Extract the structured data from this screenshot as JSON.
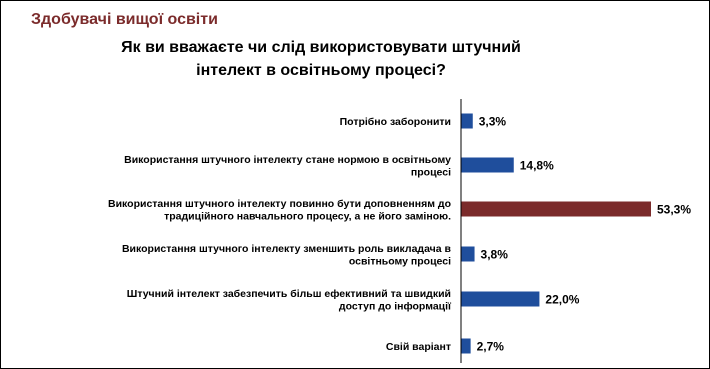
{
  "header": {
    "title": "Здобувачі вищої освіти",
    "title_color": "#7b2b2b"
  },
  "chart_data": {
    "type": "bar",
    "orientation": "horizontal",
    "title": "Як ви вважаєте чи слід використовувати штучний інтелект в освітньому процесі?",
    "xlabel": "",
    "ylabel": "",
    "value_suffix": "%",
    "xlim": [
      0,
      53.3
    ],
    "grid": false,
    "legend": "none",
    "categories": [
      [
        "Потрібно заборонити"
      ],
      [
        "Використання штучного інтелекту стане нормою в освітньому",
        "процесі"
      ],
      [
        "Використання штучного інтелекту повинно бути доповненням до",
        "традиційного навчального процесу, а не його заміною."
      ],
      [
        "Використання штучного інтелекту зменшить роль викладача в",
        "освітньому процесі"
      ],
      [
        "Штучний інтелект забезпечить більш ефективний та швидкий",
        "доступ до інформації"
      ],
      [
        "Свій варіант"
      ]
    ],
    "values": [
      3.3,
      14.8,
      53.3,
      3.8,
      22.0,
      2.7
    ],
    "value_labels": [
      "3,3%",
      "14,8%",
      "53,3%",
      "3,8%",
      "22,0%",
      "2,7%"
    ],
    "bar_colors": [
      "#1f4e9c",
      "#1f4e9c",
      "#7b2b2b",
      "#1f4e9c",
      "#1f4e9c",
      "#1f4e9c"
    ]
  }
}
